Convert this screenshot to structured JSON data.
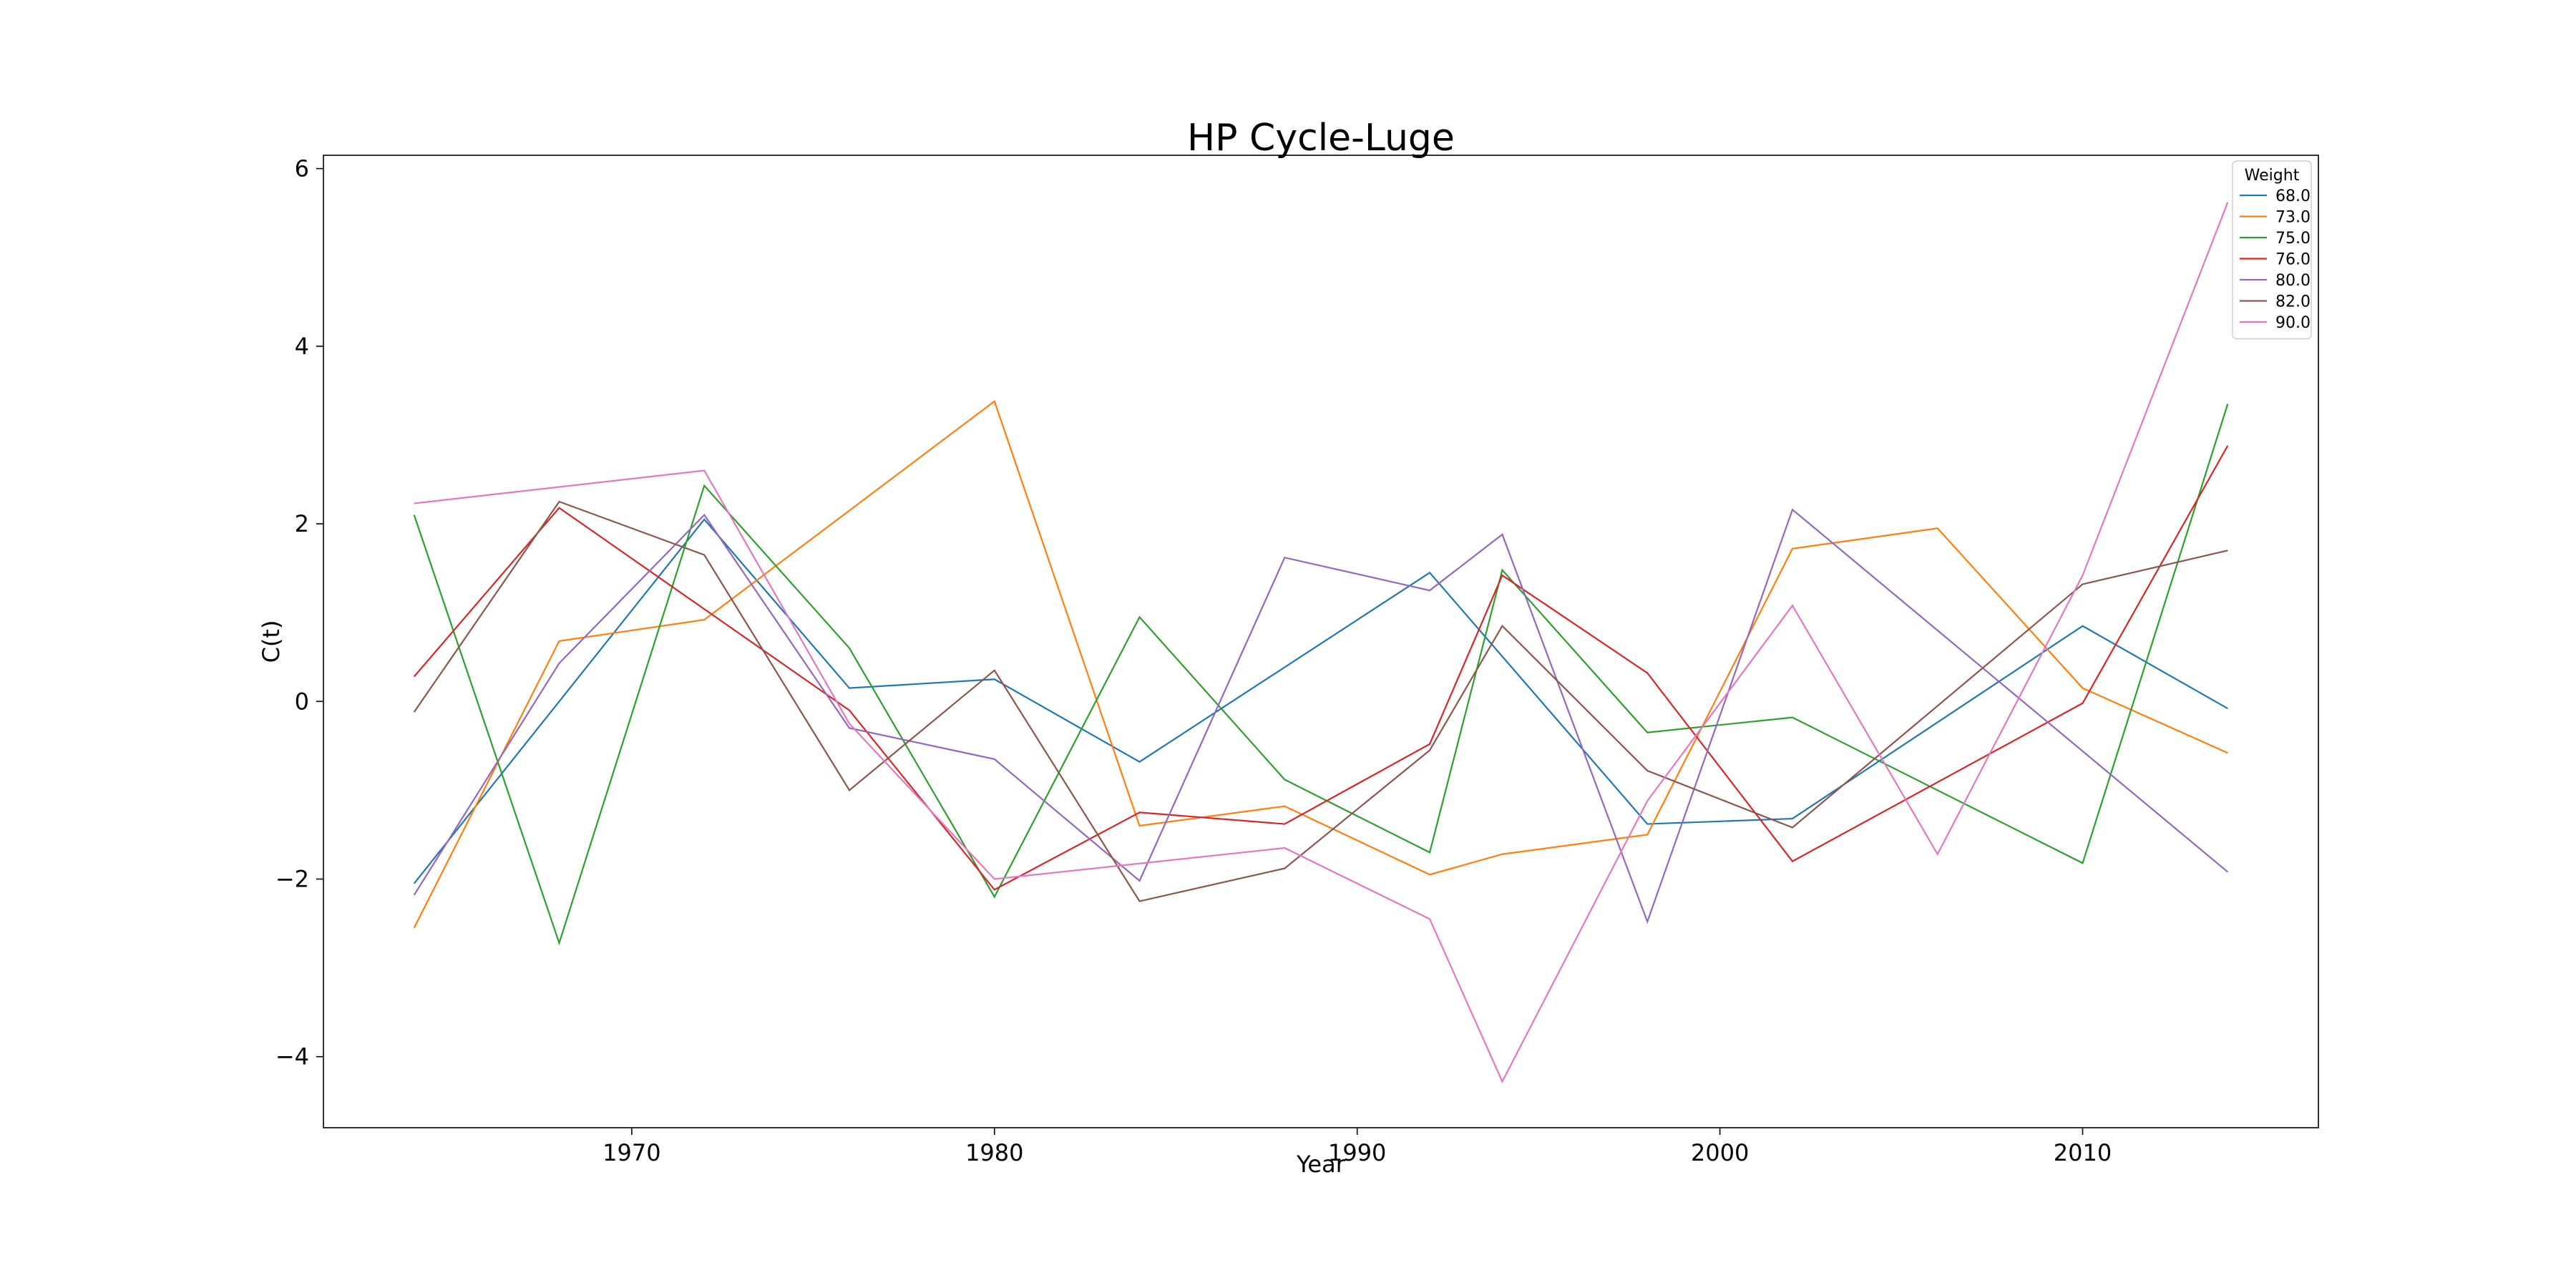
{
  "chart_data": {
    "type": "line",
    "title": "HP Cycle-Luge",
    "xlabel": "Year",
    "ylabel": "C(t)",
    "xlim": [
      1961.5,
      2016.5
    ],
    "ylim": [
      -4.8,
      6.15
    ],
    "xticks": [
      1970,
      1980,
      1990,
      2000,
      2010
    ],
    "yticks": [
      -4,
      -2,
      0,
      2,
      4,
      6
    ],
    "xtick_labels": [
      "1970",
      "1980",
      "1990",
      "2000",
      "2010"
    ],
    "ytick_labels": [
      "−4",
      "−2",
      "0",
      "2",
      "4",
      "6"
    ],
    "grid": false,
    "legend": {
      "title": "Weight",
      "position": "top-right"
    },
    "series": [
      {
        "name": "68.0",
        "color": "#1f77b4",
        "x": [
          1964,
          1968,
          1972,
          1976,
          1980,
          1984,
          1992,
          1998,
          2002,
          2010,
          2014
        ],
        "y": [
          -2.05,
          0.0,
          2.05,
          0.15,
          0.25,
          -0.68,
          1.45,
          -1.38,
          -1.32,
          0.85,
          -0.08
        ]
      },
      {
        "name": "73.0",
        "color": "#ff7f0e",
        "x": [
          1964,
          1968,
          1972,
          1980,
          1984,
          1988,
          1992,
          1994,
          1998,
          2002,
          2006,
          2010,
          2014
        ],
        "y": [
          -2.55,
          0.68,
          0.92,
          3.38,
          -1.4,
          -1.18,
          -1.95,
          -1.72,
          -1.5,
          1.72,
          1.95,
          0.15,
          -0.58
        ]
      },
      {
        "name": "75.0",
        "color": "#2ca02c",
        "x": [
          1964,
          1968,
          1972,
          1976,
          1980,
          1984,
          1988,
          1992,
          1994,
          1998,
          2002,
          2010,
          2014
        ],
        "y": [
          2.1,
          -2.72,
          2.43,
          0.6,
          -2.2,
          0.95,
          -0.88,
          -1.7,
          1.48,
          -0.35,
          -0.18,
          -1.82,
          3.35
        ]
      },
      {
        "name": "76.0",
        "color": "#d62728",
        "x": [
          1964,
          1968,
          1976,
          1980,
          1984,
          1988,
          1992,
          1994,
          1998,
          2002,
          2010,
          2014
        ],
        "y": [
          0.28,
          2.18,
          -0.1,
          -2.12,
          -1.25,
          -1.38,
          -0.48,
          1.42,
          0.32,
          -1.8,
          -0.02,
          2.88
        ]
      },
      {
        "name": "80.0",
        "color": "#9467bd",
        "x": [
          1964,
          1968,
          1972,
          1976,
          1980,
          1984,
          1988,
          1992,
          1994,
          1998,
          2002,
          2014
        ],
        "y": [
          -2.18,
          0.43,
          2.1,
          -0.3,
          -0.65,
          -2.02,
          1.62,
          1.25,
          1.88,
          -2.48,
          2.16,
          -1.92
        ]
      },
      {
        "name": "82.0",
        "color": "#8c564b",
        "x": [
          1964,
          1968,
          1972,
          1976,
          1980,
          1984,
          1988,
          1992,
          1994,
          1998,
          2002,
          2010,
          2014
        ],
        "y": [
          -0.12,
          2.25,
          1.65,
          -1.0,
          0.35,
          -2.25,
          -1.88,
          -0.55,
          0.85,
          -0.78,
          -1.42,
          1.32,
          1.7
        ]
      },
      {
        "name": "90.0",
        "color": "#e377c2",
        "x": [
          1964,
          1972,
          1976,
          1980,
          1988,
          1992,
          1994,
          1998,
          2002,
          2006,
          2010,
          2014
        ],
        "y": [
          2.23,
          2.6,
          -0.25,
          -2.0,
          -1.65,
          -2.45,
          -4.28,
          -1.12,
          1.08,
          -1.72,
          1.42,
          5.62
        ]
      }
    ]
  }
}
